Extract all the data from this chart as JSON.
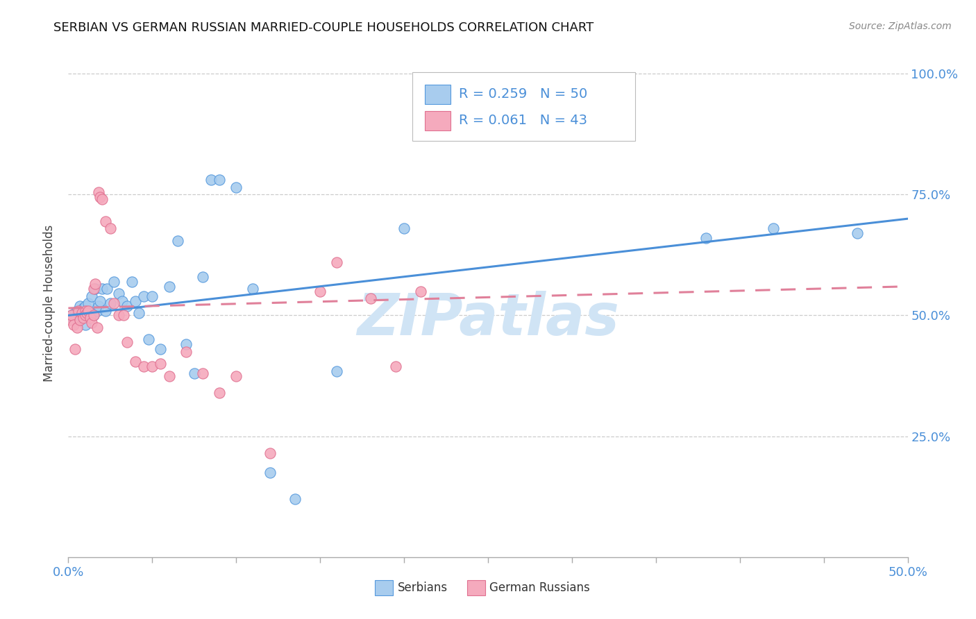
{
  "title": "SERBIAN VS GERMAN RUSSIAN MARRIED-COUPLE HOUSEHOLDS CORRELATION CHART",
  "source": "Source: ZipAtlas.com",
  "ylabel": "Married-couple Households",
  "xlim": [
    0.0,
    0.5
  ],
  "ylim": [
    0.0,
    1.05
  ],
  "color_serbian": "#A8CCEE",
  "color_serbian_edge": "#5599DD",
  "color_german_russian": "#F5AABD",
  "color_german_russian_edge": "#E07090",
  "color_line_serbian": "#4A8FD8",
  "color_line_german_russian": "#E0809A",
  "watermark": "ZIPatlas",
  "watermark_color": "#D0E4F5",
  "serbian_x": [
    0.002,
    0.003,
    0.004,
    0.005,
    0.006,
    0.007,
    0.008,
    0.009,
    0.01,
    0.01,
    0.011,
    0.012,
    0.013,
    0.014,
    0.015,
    0.016,
    0.017,
    0.018,
    0.019,
    0.02,
    0.022,
    0.023,
    0.025,
    0.027,
    0.03,
    0.032,
    0.035,
    0.038,
    0.04,
    0.042,
    0.045,
    0.048,
    0.05,
    0.055,
    0.06,
    0.065,
    0.07,
    0.075,
    0.08,
    0.085,
    0.09,
    0.1,
    0.11,
    0.12,
    0.135,
    0.16,
    0.2,
    0.38,
    0.42,
    0.47
  ],
  "serbian_y": [
    0.5,
    0.49,
    0.505,
    0.51,
    0.495,
    0.52,
    0.5,
    0.515,
    0.52,
    0.48,
    0.51,
    0.525,
    0.505,
    0.54,
    0.5,
    0.555,
    0.51,
    0.52,
    0.53,
    0.555,
    0.51,
    0.555,
    0.525,
    0.57,
    0.545,
    0.53,
    0.52,
    0.57,
    0.53,
    0.505,
    0.54,
    0.45,
    0.54,
    0.43,
    0.56,
    0.655,
    0.44,
    0.38,
    0.58,
    0.78,
    0.78,
    0.765,
    0.555,
    0.175,
    0.12,
    0.385,
    0.68,
    0.66,
    0.68,
    0.67
  ],
  "german_russian_x": [
    0.001,
    0.002,
    0.003,
    0.004,
    0.005,
    0.006,
    0.007,
    0.008,
    0.009,
    0.01,
    0.01,
    0.011,
    0.012,
    0.013,
    0.014,
    0.015,
    0.015,
    0.016,
    0.017,
    0.018,
    0.019,
    0.02,
    0.022,
    0.025,
    0.027,
    0.03,
    0.033,
    0.035,
    0.04,
    0.045,
    0.05,
    0.055,
    0.06,
    0.07,
    0.08,
    0.09,
    0.1,
    0.12,
    0.15,
    0.16,
    0.18,
    0.195,
    0.21
  ],
  "german_russian_y": [
    0.49,
    0.5,
    0.48,
    0.43,
    0.475,
    0.51,
    0.49,
    0.505,
    0.495,
    0.51,
    0.5,
    0.505,
    0.51,
    0.495,
    0.485,
    0.5,
    0.555,
    0.565,
    0.475,
    0.755,
    0.745,
    0.74,
    0.695,
    0.68,
    0.525,
    0.5,
    0.5,
    0.445,
    0.405,
    0.395,
    0.395,
    0.4,
    0.375,
    0.425,
    0.38,
    0.34,
    0.375,
    0.215,
    0.55,
    0.61,
    0.535,
    0.395,
    0.55
  ],
  "serbian_line_x0": 0.0,
  "serbian_line_y0": 0.5,
  "serbian_line_x1": 0.5,
  "serbian_line_y1": 0.7,
  "german_line_x0": 0.0,
  "german_line_y0": 0.515,
  "german_line_x1": 0.5,
  "german_line_y1": 0.56
}
